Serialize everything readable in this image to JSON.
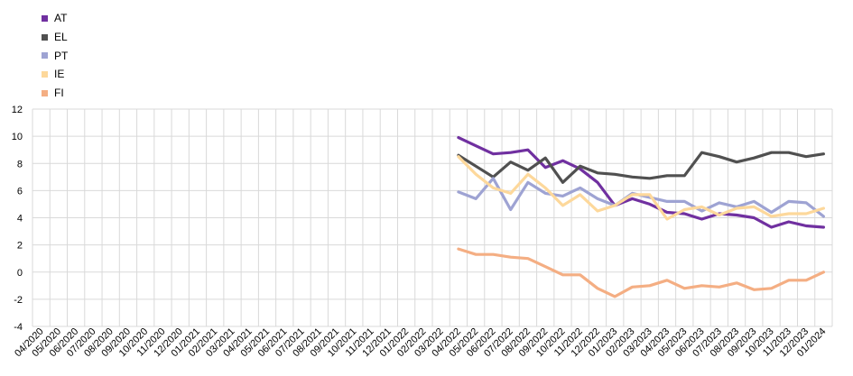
{
  "chart_data": {
    "type": "line",
    "title": "",
    "xlabel": "",
    "ylabel": "",
    "ylim": [
      -4,
      12
    ],
    "y_ticks": [
      -4,
      -2,
      0,
      2,
      4,
      6,
      8,
      10,
      12
    ],
    "grid": true,
    "legend_position": "top-left",
    "x": [
      "04/2020",
      "05/2020",
      "06/2020",
      "07/2020",
      "08/2020",
      "09/2020",
      "10/2020",
      "11/2020",
      "12/2020",
      "01/2021",
      "02/2021",
      "03/2021",
      "04/2021",
      "05/2021",
      "06/2021",
      "07/2021",
      "08/2021",
      "09/2021",
      "10/2021",
      "11/2021",
      "12/2021",
      "01/2022",
      "02/2022",
      "03/2022",
      "04/2022",
      "05/2022",
      "06/2022",
      "07/2022",
      "08/2022",
      "09/2022",
      "10/2022",
      "11/2022",
      "12/2022",
      "01/2023",
      "02/2023",
      "03/2023",
      "04/2023",
      "05/2023",
      "06/2023",
      "07/2023",
      "08/2023",
      "09/2023",
      "10/2023",
      "11/2023",
      "12/2023",
      "01/2024"
    ],
    "series": [
      {
        "name": "AT",
        "color": "#7030a0",
        "values": [
          null,
          null,
          null,
          null,
          null,
          null,
          null,
          null,
          null,
          null,
          null,
          null,
          null,
          null,
          null,
          null,
          null,
          null,
          null,
          null,
          null,
          null,
          null,
          null,
          9.9,
          9.3,
          8.7,
          8.8,
          9.0,
          7.7,
          8.2,
          7.6,
          6.6,
          4.9,
          5.4,
          5.0,
          4.4,
          4.3,
          3.9,
          4.3,
          4.2,
          4.0,
          3.3,
          3.7,
          3.4,
          3.3
        ]
      },
      {
        "name": "EL",
        "color": "#505050",
        "values": [
          null,
          null,
          null,
          null,
          null,
          null,
          null,
          null,
          null,
          null,
          null,
          null,
          null,
          null,
          null,
          null,
          null,
          null,
          null,
          null,
          null,
          null,
          null,
          null,
          8.6,
          7.8,
          7.0,
          8.1,
          7.5,
          8.4,
          6.6,
          7.8,
          7.3,
          7.2,
          7.0,
          6.9,
          7.1,
          7.1,
          8.8,
          8.5,
          8.1,
          8.4,
          8.8,
          8.8,
          8.5,
          8.7
        ]
      },
      {
        "name": "PT",
        "color": "#9ea3d3",
        "values": [
          null,
          null,
          null,
          null,
          null,
          null,
          null,
          null,
          null,
          null,
          null,
          null,
          null,
          null,
          null,
          null,
          null,
          null,
          null,
          null,
          null,
          null,
          null,
          null,
          5.9,
          5.4,
          6.9,
          4.6,
          6.6,
          5.8,
          5.6,
          6.2,
          5.4,
          4.9,
          5.8,
          5.5,
          5.2,
          5.2,
          4.5,
          5.1,
          4.8,
          5.2,
          4.4,
          5.2,
          5.1,
          4.1
        ]
      },
      {
        "name": "IE",
        "color": "#fdd89b",
        "values": [
          null,
          null,
          null,
          null,
          null,
          null,
          null,
          null,
          null,
          null,
          null,
          null,
          null,
          null,
          null,
          null,
          null,
          null,
          null,
          null,
          null,
          null,
          null,
          null,
          8.5,
          7.2,
          6.2,
          5.8,
          7.2,
          6.2,
          4.9,
          5.7,
          4.5,
          4.9,
          5.7,
          5.7,
          3.9,
          4.6,
          4.8,
          4.2,
          4.7,
          4.8,
          4.1,
          4.3,
          4.3,
          4.7
        ]
      },
      {
        "name": "FI",
        "color": "#f4ae83",
        "values": [
          null,
          null,
          null,
          null,
          null,
          null,
          null,
          null,
          null,
          null,
          null,
          null,
          null,
          null,
          null,
          null,
          null,
          null,
          null,
          null,
          null,
          null,
          null,
          null,
          1.7,
          1.3,
          1.3,
          1.1,
          1.0,
          0.4,
          -0.2,
          -0.2,
          -1.2,
          -1.8,
          -1.1,
          -1.0,
          -0.6,
          -1.2,
          -1.0,
          -1.1,
          -0.8,
          -1.3,
          -1.2,
          -0.6,
          -0.6,
          0.0
        ]
      }
    ]
  }
}
